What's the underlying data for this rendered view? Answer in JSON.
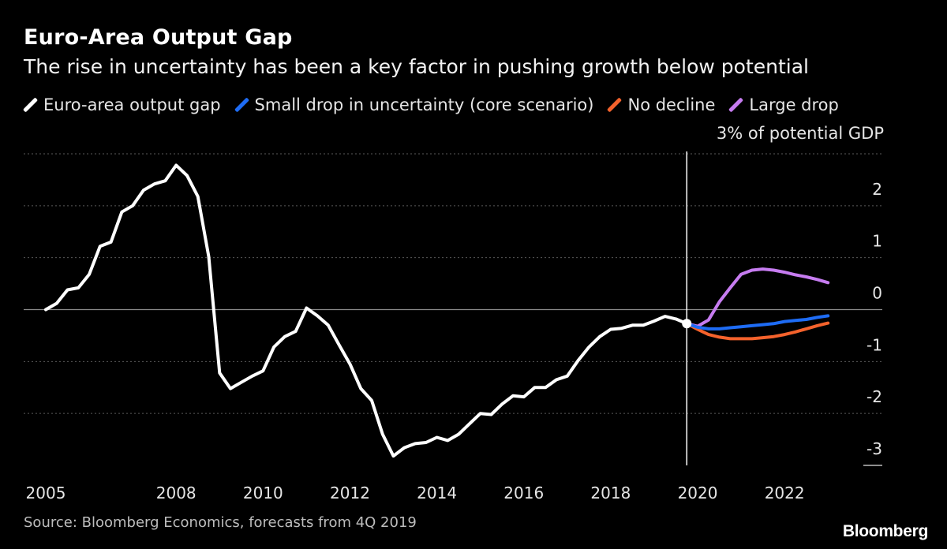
{
  "header": {
    "title": "Euro-Area Output Gap",
    "subtitle": "The rise in uncertainty has been a key factor in pushing growth below potential"
  },
  "legend": [
    {
      "label": "Euro-area output gap",
      "color": "#ffffff"
    },
    {
      "label": "Small drop in uncertainty (core scenario)",
      "color": "#1e6cf5"
    },
    {
      "label": "No decline",
      "color": "#f4622c"
    },
    {
      "label": "Large drop",
      "color": "#c67cf0"
    }
  ],
  "unit_label": "3% of potential GDP",
  "footer": {
    "source": "Source: Bloomberg Economics, forecasts from 4Q 2019",
    "brand": "Bloomberg"
  },
  "chart_data": {
    "type": "line",
    "title": "Euro-Area Output Gap",
    "ylabel": "% of potential GDP",
    "xlabel": "",
    "xlim": [
      2005.0,
      2023.25
    ],
    "ylim": [
      -3.0,
      3.0
    ],
    "y_ticks": [
      3,
      2,
      1,
      0,
      -1,
      -2,
      -3
    ],
    "y_tick_labels": [
      "3%",
      "2",
      "1",
      "0",
      "-1",
      "-2",
      "-3"
    ],
    "x_ticks": [
      2005,
      2008,
      2010,
      2012,
      2014,
      2016,
      2018,
      2020,
      2022
    ],
    "x_tick_labels": [
      "2005",
      "2008",
      "2010",
      "2012",
      "2014",
      "2016",
      "2018",
      "2020",
      "2022"
    ],
    "forecast_start": 2019.75,
    "series": [
      {
        "name": "Euro-area output gap",
        "color": "#ffffff",
        "x": [
          2005.0,
          2005.25,
          2005.5,
          2005.75,
          2006.0,
          2006.25,
          2006.5,
          2006.75,
          2007.0,
          2007.25,
          2007.5,
          2007.75,
          2008.0,
          2008.25,
          2008.5,
          2008.75,
          2009.0,
          2009.25,
          2009.5,
          2009.75,
          2010.0,
          2010.25,
          2010.5,
          2010.75,
          2011.0,
          2011.25,
          2011.5,
          2011.75,
          2012.0,
          2012.25,
          2012.5,
          2012.75,
          2013.0,
          2013.25,
          2013.5,
          2013.75,
          2014.0,
          2014.25,
          2014.5,
          2014.75,
          2015.0,
          2015.25,
          2015.5,
          2015.75,
          2016.0,
          2016.25,
          2016.5,
          2016.75,
          2017.0,
          2017.25,
          2017.5,
          2017.75,
          2018.0,
          2018.25,
          2018.5,
          2018.75,
          2019.0,
          2019.25,
          2019.5,
          2019.75
        ],
        "values": [
          0.0,
          0.12,
          0.38,
          0.42,
          0.68,
          1.22,
          1.3,
          1.88,
          2.0,
          2.3,
          2.42,
          2.48,
          2.78,
          2.58,
          2.18,
          1.02,
          -1.22,
          -1.52,
          -1.4,
          -1.28,
          -1.18,
          -0.72,
          -0.52,
          -0.42,
          0.03,
          -0.12,
          -0.3,
          -0.68,
          -1.05,
          -1.52,
          -1.75,
          -2.4,
          -2.82,
          -2.66,
          -2.58,
          -2.56,
          -2.46,
          -2.52,
          -2.4,
          -2.2,
          -2.0,
          -2.02,
          -1.82,
          -1.66,
          -1.68,
          -1.5,
          -1.5,
          -1.35,
          -1.28,
          -0.98,
          -0.72,
          -0.52,
          -0.38,
          -0.36,
          -0.3,
          -0.3,
          -0.22,
          -0.13,
          -0.18,
          -0.27
        ]
      },
      {
        "name": "Small drop in uncertainty (core scenario)",
        "color": "#1e6cf5",
        "x": [
          2019.75,
          2020.0,
          2020.25,
          2020.5,
          2020.75,
          2021.0,
          2021.25,
          2021.5,
          2021.75,
          2022.0,
          2022.25,
          2022.5,
          2022.75,
          2023.0
        ],
        "values": [
          -0.27,
          -0.34,
          -0.37,
          -0.37,
          -0.35,
          -0.33,
          -0.31,
          -0.29,
          -0.27,
          -0.23,
          -0.21,
          -0.19,
          -0.15,
          -0.12
        ]
      },
      {
        "name": "No decline",
        "color": "#f4622c",
        "x": [
          2019.75,
          2020.0,
          2020.25,
          2020.5,
          2020.75,
          2021.0,
          2021.25,
          2021.5,
          2021.75,
          2022.0,
          2022.25,
          2022.5,
          2022.75,
          2023.0
        ],
        "values": [
          -0.27,
          -0.38,
          -0.48,
          -0.53,
          -0.56,
          -0.56,
          -0.56,
          -0.54,
          -0.52,
          -0.48,
          -0.43,
          -0.37,
          -0.31,
          -0.26
        ]
      },
      {
        "name": "Large drop",
        "color": "#c67cf0",
        "x": [
          2019.75,
          2020.0,
          2020.25,
          2020.5,
          2020.75,
          2021.0,
          2021.25,
          2021.5,
          2021.75,
          2022.0,
          2022.25,
          2022.5,
          2022.75,
          2023.0
        ],
        "values": [
          -0.27,
          -0.32,
          -0.2,
          0.15,
          0.42,
          0.68,
          0.76,
          0.78,
          0.76,
          0.72,
          0.67,
          0.63,
          0.58,
          0.52
        ]
      }
    ]
  }
}
